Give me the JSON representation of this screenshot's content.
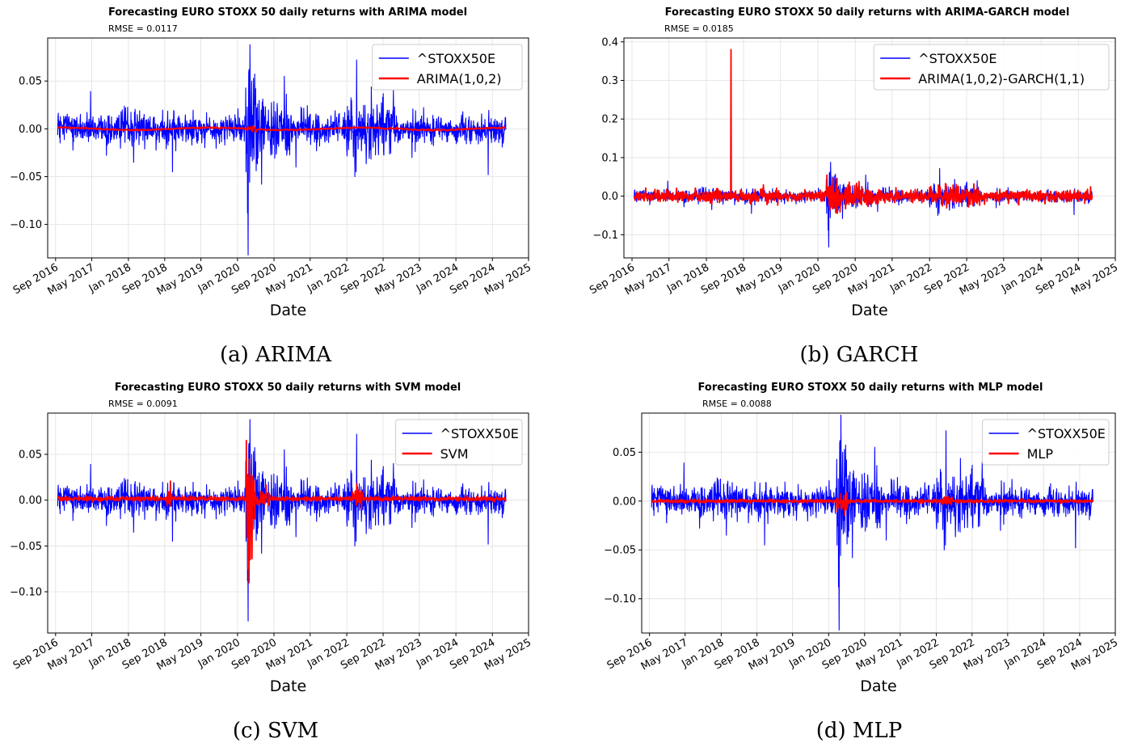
{
  "chart_data": [
    {
      "type": "line",
      "caption": "(a) ARIMA",
      "title": "Forecasting EURO STOXX 50 daily returns with ARIMA model",
      "annotation": "RMSE = 0.0117",
      "xlabel": "Date",
      "ylabel": "",
      "xlim": [
        "2016-07-10",
        "2025-05-01"
      ],
      "ylim": [
        -0.135,
        0.095
      ],
      "yticks": [
        0.05,
        0.0,
        -0.05,
        -0.1
      ],
      "ytick_labels": [
        "0.05",
        "0.00",
        "−0.05",
        "−0.10"
      ],
      "xticks": [
        "2016-09-01",
        "2017-05-01",
        "2018-01-01",
        "2018-09-01",
        "2019-05-01",
        "2020-01-01",
        "2020-09-01",
        "2021-05-01",
        "2022-01-01",
        "2022-09-01",
        "2023-05-01",
        "2024-01-01",
        "2024-09-01",
        "2025-05-01"
      ],
      "xtick_labels": [
        "Sep 2016",
        "May 2017",
        "Jan 2018",
        "Sep 2018",
        "May 2019",
        "Jan 2020",
        "Sep 2020",
        "May 2021",
        "Jan 2022",
        "Sep 2022",
        "May 2023",
        "Jan 2024",
        "Sep 2024",
        "May 2025"
      ],
      "grid": true,
      "legend": "top-right",
      "series": [
        {
          "name": "^STOXX50E",
          "color": "#0000ff",
          "kind": "actual",
          "x_start": "2016-09-15",
          "x_end": "2024-11-30",
          "approx_range": [
            -0.13,
            0.088
          ]
        },
        {
          "name": "ARIMA(1,0,2)",
          "color": "#ff0000",
          "kind": "arima",
          "x_start": "2016-09-15",
          "x_end": "2024-11-30",
          "approx_range": [
            -0.002,
            0.002
          ]
        }
      ]
    },
    {
      "type": "line",
      "caption": "(b) GARCH",
      "title": "Forecasting EURO STOXX 50 daily returns with ARIMA-GARCH model",
      "annotation": "RMSE = 0.0185",
      "xlabel": "Date",
      "ylabel": "",
      "xlim": [
        "2016-07-10",
        "2025-05-01"
      ],
      "ylim": [
        -0.16,
        0.41
      ],
      "yticks": [
        0.4,
        0.3,
        0.2,
        0.1,
        0.0,
        -0.1
      ],
      "ytick_labels": [
        "0.4",
        "0.3",
        "0.2",
        "0.1",
        "0.0",
        "−0.1"
      ],
      "xticks": [
        "2016-09-01",
        "2017-05-01",
        "2018-01-01",
        "2018-09-01",
        "2019-05-01",
        "2020-01-01",
        "2020-09-01",
        "2021-05-01",
        "2022-01-01",
        "2022-09-01",
        "2023-05-01",
        "2024-01-01",
        "2024-09-01",
        "2025-05-01"
      ],
      "xtick_labels": [
        "Sep 2016",
        "May 2017",
        "Jan 2018",
        "Sep 2018",
        "May 2019",
        "Jan 2020",
        "Sep 2020",
        "May 2021",
        "Jan 2022",
        "Sep 2022",
        "May 2023",
        "Jan 2024",
        "Sep 2024",
        "May 2025"
      ],
      "grid": true,
      "legend": "top-right",
      "series": [
        {
          "name": "^STOXX50E",
          "color": "#0000ff",
          "kind": "actual",
          "x_start": "2016-09-15",
          "x_end": "2024-11-30",
          "approx_range": [
            -0.13,
            0.088
          ]
        },
        {
          "name": "ARIMA(1,0,2)-GARCH(1,1)",
          "color": "#ff0000",
          "kind": "garch",
          "x_start": "2016-09-15",
          "x_end": "2024-11-30",
          "approx_range": [
            -0.07,
            0.38
          ]
        }
      ]
    },
    {
      "type": "line",
      "caption": "(c) SVM",
      "title": "Forecasting EURO STOXX 50 daily returns with SVM model",
      "annotation": "RMSE = 0.0091",
      "xlabel": "Date",
      "ylabel": "",
      "xlim": [
        "2016-07-10",
        "2025-05-01"
      ],
      "ylim": [
        -0.145,
        0.095
      ],
      "yticks": [
        0.05,
        0.0,
        -0.05,
        -0.1
      ],
      "ytick_labels": [
        "0.05",
        "0.00",
        "−0.05",
        "−0.10"
      ],
      "xticks": [
        "2016-09-01",
        "2017-05-01",
        "2018-01-01",
        "2018-09-01",
        "2019-05-01",
        "2020-01-01",
        "2020-09-01",
        "2021-05-01",
        "2022-01-01",
        "2022-09-01",
        "2023-05-01",
        "2024-01-01",
        "2024-09-01",
        "2025-05-01"
      ],
      "xtick_labels": [
        "Sep 2016",
        "May 2017",
        "Jan 2018",
        "Sep 2018",
        "May 2019",
        "Jan 2020",
        "Sep 2020",
        "May 2021",
        "Jan 2022",
        "Sep 2022",
        "May 2023",
        "Jan 2024",
        "Sep 2024",
        "May 2025"
      ],
      "grid": true,
      "legend": "top-right",
      "series": [
        {
          "name": "^STOXX50E",
          "color": "#0000ff",
          "kind": "actual",
          "x_start": "2016-09-15",
          "x_end": "2024-11-30",
          "approx_range": [
            -0.13,
            0.088
          ]
        },
        {
          "name": "SVM",
          "color": "#ff0000",
          "kind": "svm",
          "x_start": "2016-09-15",
          "x_end": "2024-11-30",
          "approx_range": [
            -0.075,
            0.045
          ]
        }
      ]
    },
    {
      "type": "line",
      "caption": "(d) MLP",
      "title": "Forecasting EURO STOXX 50 daily returns with MLP model",
      "annotation": "RMSE = 0.0088",
      "xlabel": "Date",
      "ylabel": "",
      "xlim": [
        "2016-07-10",
        "2025-05-01"
      ],
      "ylim": [
        -0.135,
        0.09
      ],
      "yticks": [
        0.05,
        0.0,
        -0.05,
        -0.1
      ],
      "ytick_labels": [
        "0.05",
        "0.00",
        "−0.05",
        "−0.10"
      ],
      "xticks": [
        "2016-09-01",
        "2017-05-01",
        "2018-01-01",
        "2018-09-01",
        "2019-05-01",
        "2020-01-01",
        "2020-09-01",
        "2021-05-01",
        "2022-01-01",
        "2022-09-01",
        "2023-05-01",
        "2024-01-01",
        "2024-09-01",
        "2025-05-01"
      ],
      "xtick_labels": [
        "Sep 2016",
        "May 2017",
        "Jan 2018",
        "Sep 2018",
        "May 2019",
        "Jan 2020",
        "Sep 2020",
        "May 2021",
        "Jan 2022",
        "Sep 2022",
        "May 2023",
        "Jan 2024",
        "Sep 2024",
        "May 2025"
      ],
      "grid": true,
      "legend": "top-right",
      "series": [
        {
          "name": "^STOXX50E",
          "color": "#0000ff",
          "kind": "actual",
          "x_start": "2016-09-15",
          "x_end": "2024-11-30",
          "approx_range": [
            -0.13,
            0.088
          ]
        },
        {
          "name": "MLP",
          "color": "#ff0000",
          "kind": "mlp",
          "x_start": "2016-09-15",
          "x_end": "2024-11-30",
          "approx_range": [
            -0.015,
            0.01
          ]
        }
      ]
    }
  ]
}
